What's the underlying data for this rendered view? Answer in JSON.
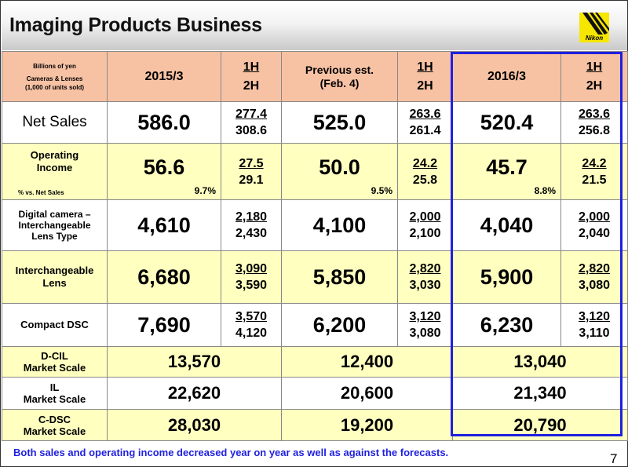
{
  "header": {
    "title": "Imaging Products Business",
    "logo_text": "Nikon"
  },
  "table": {
    "corner": {
      "line1": "Billions of yen",
      "line2": "Cameras & Lenses",
      "line3": "(1,000 of units sold)"
    },
    "columns": [
      {
        "label": "2015/3"
      },
      {
        "label": "Previous est.",
        "sub": "(Feb. 4)"
      },
      {
        "label": "2016/3"
      }
    ],
    "half_labels": {
      "h1": "1H",
      "h2": "2H"
    },
    "rows": [
      {
        "label": "Net Sales",
        "cells": [
          {
            "value": "586.0",
            "h1": "277.4",
            "h2": "308.6"
          },
          {
            "value": "525.0",
            "h1": "263.6",
            "h2": "261.4"
          },
          {
            "value": "520.4",
            "h1": "263.6",
            "h2": "256.8"
          }
        ]
      },
      {
        "label_l1": "Operating",
        "label_l2": "Income",
        "pct_label": "% vs. Net Sales",
        "cells": [
          {
            "value": "56.6",
            "pct": "9.7%",
            "h1": "27.5",
            "h2": "29.1"
          },
          {
            "value": "50.0",
            "pct": "9.5%",
            "h1": "24.2",
            "h2": "25.8"
          },
          {
            "value": "45.7",
            "pct": "8.8%",
            "h1": "24.2",
            "h2": "21.5"
          }
        ]
      },
      {
        "label_l1": "Digital camera –",
        "label_l2": "Interchangeable",
        "label_l3": "Lens Type",
        "cells": [
          {
            "value": "4,610",
            "h1": "2,180",
            "h2": "2,430"
          },
          {
            "value": "4,100",
            "h1": "2,000",
            "h2": "2,100"
          },
          {
            "value": "4,040",
            "h1": "2,000",
            "h2": "2,040"
          }
        ]
      },
      {
        "label_l1": "Interchangeable",
        "label_l2": "Lens",
        "cells": [
          {
            "value": "6,680",
            "h1": "3,090",
            "h2": "3,590"
          },
          {
            "value": "5,850",
            "h1": "2,820",
            "h2": "3,030"
          },
          {
            "value": "5,900",
            "h1": "2,820",
            "h2": "3,080"
          }
        ]
      },
      {
        "label": "Compact DSC",
        "cells": [
          {
            "value": "7,690",
            "h1": "3,570",
            "h2": "4,120"
          },
          {
            "value": "6,200",
            "h1": "3,120",
            "h2": "3,080"
          },
          {
            "value": "6,230",
            "h1": "3,120",
            "h2": "3,110"
          }
        ]
      }
    ],
    "market_rows": [
      {
        "label_l1": "D-CIL",
        "label_l2": "Market Scale",
        "values": [
          "13,570",
          "12,400",
          "13,040"
        ]
      },
      {
        "label_l1": "IL",
        "label_l2": "Market Scale",
        "values": [
          "22,620",
          "20,600",
          "21,340"
        ]
      },
      {
        "label_l1": "C-DSC",
        "label_l2": "Market Scale",
        "values": [
          "28,030",
          "19,200",
          "20,790"
        ]
      }
    ]
  },
  "footer": {
    "text": "Both sales and operating income decreased year on year as well as against the forecasts.",
    "page": "7"
  },
  "colors": {
    "header_bg": "#f7c2a4",
    "yellow_row": "#ffffc0",
    "highlight_border": "#1f1fe0",
    "footer_text": "#1f1fe0",
    "logo_bg": "#f6e600"
  }
}
